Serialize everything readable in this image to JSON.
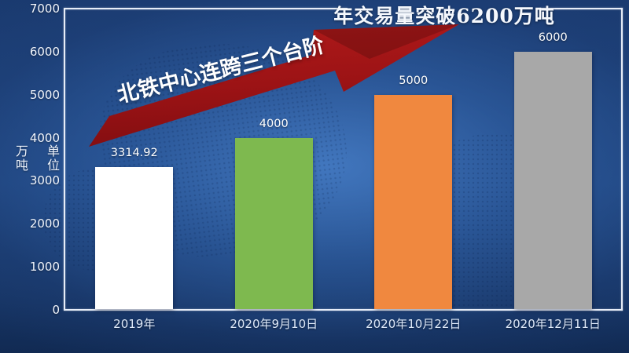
{
  "slide": {
    "title": "年交易量突破6200万吨",
    "arrow_annotation": "北铁中心连跨三个台阶"
  },
  "y_axis": {
    "unit_top": "单位",
    "unit_bottom": "万吨"
  },
  "chart_data": {
    "type": "bar",
    "title": "年交易量突破6200万吨",
    "annotation": "北铁中心连跨三个台阶",
    "categories": [
      "2019年",
      "2020年9月10日",
      "2020年10月22日",
      "2020年12月11日"
    ],
    "values": [
      3314.92,
      4000,
      5000,
      6000
    ],
    "data_labels": [
      "3314.92",
      "4000",
      "5000",
      "6000"
    ],
    "bar_colors": [
      "#ffffff",
      "#7eb94f",
      "#f0883f",
      "#a8a8a8"
    ],
    "ylabel": "单位 万吨",
    "xlabel": "",
    "ylim": [
      0,
      7000
    ],
    "yticks": [
      0,
      1000,
      2000,
      3000,
      4000,
      5000,
      6000,
      7000
    ],
    "grid": false,
    "legend": false,
    "colors": {
      "background_center": "#2f63ab",
      "background_edge": "#122a55",
      "arrow_light": "#b01a1a",
      "arrow_dark": "#840e11",
      "axis_line": "#e7edf8",
      "label_text": "#ffffff",
      "category_text": "#dde8f8"
    }
  }
}
